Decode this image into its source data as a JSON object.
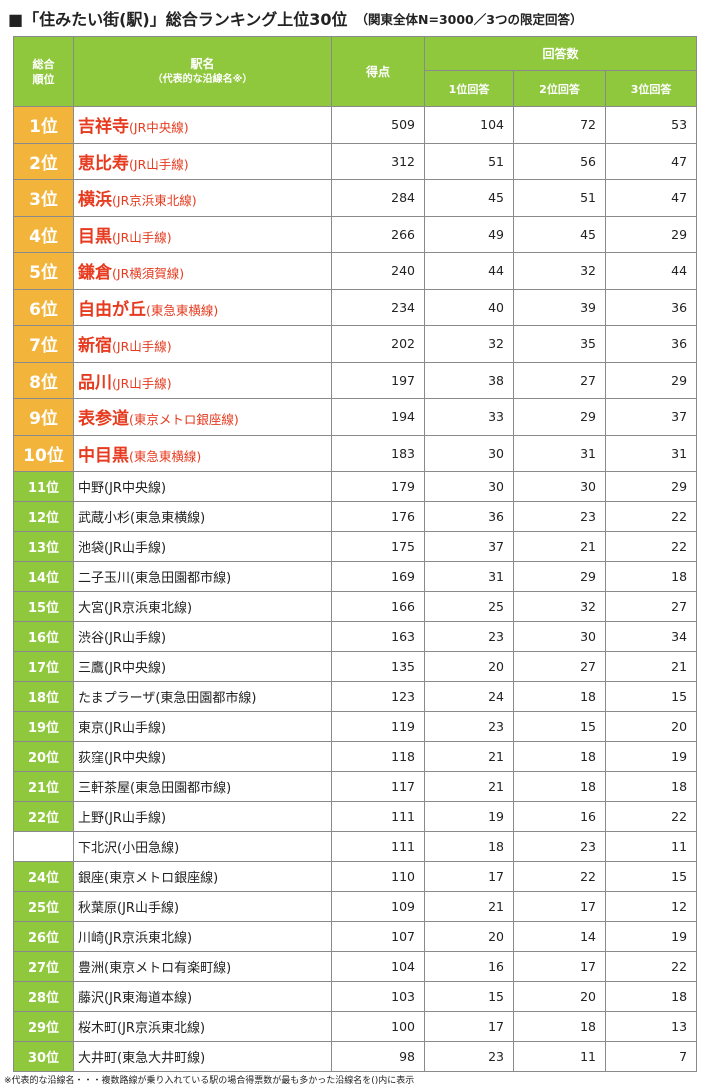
{
  "title": {
    "main": "■「住みたい街(駅)」総合ランキング上位30位",
    "sub": "（関東全体N=3000／3つの限定回答）"
  },
  "header": {
    "rank": "総合\n順位",
    "name": "駅名",
    "name_sub": "（代表的な沿線名※）",
    "score": "得点",
    "votes": "回答数",
    "vote1": "1位回答",
    "vote2": "2位回答",
    "vote3": "3位回答"
  },
  "rows": [
    {
      "rank": "1位",
      "station": "吉祥寺",
      "line": "(JR中央線)",
      "score": "509",
      "v1": "104",
      "v2": "72",
      "v3": "53"
    },
    {
      "rank": "2位",
      "station": "恵比寿",
      "line": "(JR山手線)",
      "score": "312",
      "v1": "51",
      "v2": "56",
      "v3": "47"
    },
    {
      "rank": "3位",
      "station": "横浜",
      "line": "(JR京浜東北線)",
      "score": "284",
      "v1": "45",
      "v2": "51",
      "v3": "47"
    },
    {
      "rank": "4位",
      "station": "目黒",
      "line": "(JR山手線)",
      "score": "266",
      "v1": "49",
      "v2": "45",
      "v3": "29"
    },
    {
      "rank": "5位",
      "station": "鎌倉",
      "line": "(JR横須賀線)",
      "score": "240",
      "v1": "44",
      "v2": "32",
      "v3": "44"
    },
    {
      "rank": "6位",
      "station": "自由が丘",
      "line": "(東急東横線)",
      "score": "234",
      "v1": "40",
      "v2": "39",
      "v3": "36"
    },
    {
      "rank": "7位",
      "station": "新宿",
      "line": "(JR山手線)",
      "score": "202",
      "v1": "32",
      "v2": "35",
      "v3": "36"
    },
    {
      "rank": "8位",
      "station": "品川",
      "line": "(JR山手線)",
      "score": "197",
      "v1": "38",
      "v2": "27",
      "v3": "29"
    },
    {
      "rank": "9位",
      "station": "表参道",
      "line": "(東京メトロ銀座線)",
      "score": "194",
      "v1": "33",
      "v2": "29",
      "v3": "37"
    },
    {
      "rank": "10位",
      "station": "中目黒",
      "line": "(東急東横線)",
      "score": "183",
      "v1": "30",
      "v2": "31",
      "v3": "31"
    },
    {
      "rank": "11位",
      "station": "中野",
      "line": "(JR中央線)",
      "score": "179",
      "v1": "30",
      "v2": "30",
      "v3": "29"
    },
    {
      "rank": "12位",
      "station": "武蔵小杉",
      "line": "(東急東横線)",
      "score": "176",
      "v1": "36",
      "v2": "23",
      "v3": "22"
    },
    {
      "rank": "13位",
      "station": "池袋",
      "line": "(JR山手線)",
      "score": "175",
      "v1": "37",
      "v2": "21",
      "v3": "22"
    },
    {
      "rank": "14位",
      "station": "二子玉川",
      "line": "(東急田園都市線)",
      "score": "169",
      "v1": "31",
      "v2": "29",
      "v3": "18"
    },
    {
      "rank": "15位",
      "station": "大宮",
      "line": "(JR京浜東北線)",
      "score": "166",
      "v1": "25",
      "v2": "32",
      "v3": "27"
    },
    {
      "rank": "16位",
      "station": "渋谷",
      "line": "(JR山手線)",
      "score": "163",
      "v1": "23",
      "v2": "30",
      "v3": "34"
    },
    {
      "rank": "17位",
      "station": "三鷹",
      "line": "(JR中央線)",
      "score": "135",
      "v1": "20",
      "v2": "27",
      "v3": "21"
    },
    {
      "rank": "18位",
      "station": "たまプラーザ",
      "line": "(東急田園都市線)",
      "score": "123",
      "v1": "24",
      "v2": "18",
      "v3": "15"
    },
    {
      "rank": "19位",
      "station": "東京",
      "line": "(JR山手線)",
      "score": "119",
      "v1": "23",
      "v2": "15",
      "v3": "20"
    },
    {
      "rank": "20位",
      "station": "荻窪",
      "line": "(JR中央線)",
      "score": "118",
      "v1": "21",
      "v2": "18",
      "v3": "19"
    },
    {
      "rank": "21位",
      "station": "三軒茶屋",
      "line": "(東急田園都市線)",
      "score": "117",
      "v1": "21",
      "v2": "18",
      "v3": "18"
    },
    {
      "rank": "22位",
      "station": "上野",
      "line": "(JR山手線)",
      "score": "111",
      "v1": "19",
      "v2": "16",
      "v3": "22"
    },
    {
      "rank": "",
      "station": "下北沢",
      "line": "(小田急線)",
      "score": "111",
      "v1": "18",
      "v2": "23",
      "v3": "11"
    },
    {
      "rank": "24位",
      "station": "銀座",
      "line": "(東京メトロ銀座線)",
      "score": "110",
      "v1": "17",
      "v2": "22",
      "v3": "15"
    },
    {
      "rank": "25位",
      "station": "秋葉原",
      "line": "(JR山手線)",
      "score": "109",
      "v1": "21",
      "v2": "17",
      "v3": "12"
    },
    {
      "rank": "26位",
      "station": "川崎",
      "line": "(JR京浜東北線)",
      "score": "107",
      "v1": "20",
      "v2": "14",
      "v3": "19"
    },
    {
      "rank": "27位",
      "station": "豊洲",
      "line": "(東京メトロ有楽町線)",
      "score": "104",
      "v1": "16",
      "v2": "17",
      "v3": "22"
    },
    {
      "rank": "28位",
      "station": "藤沢",
      "line": "(JR東海道本線)",
      "score": "103",
      "v1": "15",
      "v2": "20",
      "v3": "18"
    },
    {
      "rank": "29位",
      "station": "桜木町",
      "line": "(JR京浜東北線)",
      "score": "100",
      "v1": "17",
      "v2": "18",
      "v3": "13"
    },
    {
      "rank": "30位",
      "station": "大井町",
      "line": "(東急大井町線)",
      "score": "98",
      "v1": "23",
      "v2": "11",
      "v3": "7"
    }
  ],
  "footnote": "※代表的な沿線名・・・複数路線が乗り入れている駅の場合得票数が最も多かった沿線名を()内に表示",
  "colors": {
    "header_green": "#8fc83d",
    "top10_orange": "#f3b43c",
    "top10_red_text": "#e63b1f"
  }
}
